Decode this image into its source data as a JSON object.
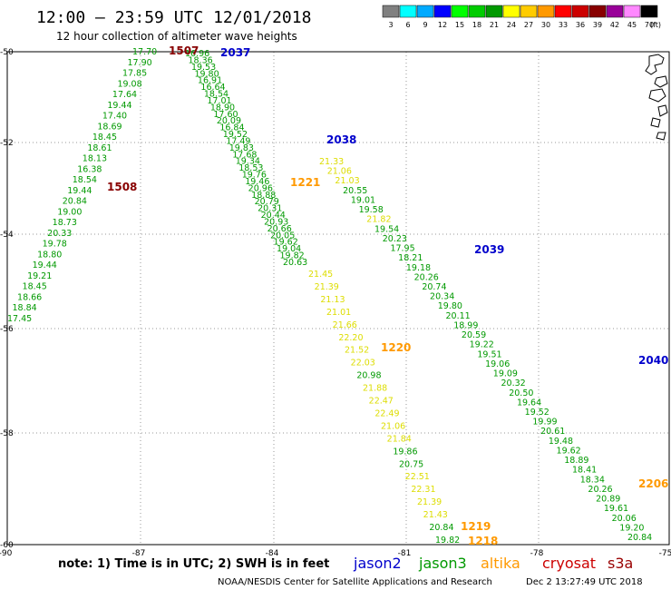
{
  "title": "12:00 – 23:59 UTC 12/01/2018",
  "subtitle": "12 hour collection of altimeter wave heights",
  "colorbar": {
    "unit": "(ft)",
    "labels": [
      "3",
      "6",
      "9",
      "12",
      "15",
      "18",
      "21",
      "24",
      "27",
      "30",
      "33",
      "36",
      "39",
      "42",
      "45",
      "70"
    ],
    "colors": [
      "#808080",
      "#00ffff",
      "#00aaff",
      "#0000ff",
      "#00ff00",
      "#00cc00",
      "#009900",
      "#ffff00",
      "#ffcc00",
      "#ff9900",
      "#ff0000",
      "#cc0000",
      "#880000",
      "#990099",
      "#ff88ff",
      "#000000"
    ]
  },
  "axes": {
    "lon_labels": [
      "-90",
      "-87",
      "-84",
      "-81",
      "-78",
      "-75"
    ],
    "lat_labels": [
      "-50",
      "-52",
      "-54",
      "-56",
      "-58",
      "-60"
    ]
  },
  "note": "note: 1) Time is in UTC; 2) SWH is in feet",
  "legend": [
    {
      "name": "jason2",
      "color": "#0000cc"
    },
    {
      "name": "jason3",
      "color": "#009900"
    },
    {
      "name": "altika",
      "color": "#ff9900"
    },
    {
      "name": "cryosat",
      "color": "#cc0000"
    },
    {
      "name": "s3a",
      "color": "#990000"
    }
  ],
  "credit": "NOAA/NESDIS Center for Satellite Applications and Research",
  "timestamp": "Dec  2 13:27:49 UTC 2018",
  "time_labels": [
    {
      "text": "1507",
      "color": "#880000"
    },
    {
      "text": "2037",
      "color": "#0000cc"
    },
    {
      "text": "2038",
      "color": "#0000cc"
    },
    {
      "text": "1508",
      "color": "#880000"
    },
    {
      "text": "1221",
      "color": "#ff9900"
    },
    {
      "text": "2039",
      "color": "#0000cc"
    },
    {
      "text": "1220",
      "color": "#ff9900"
    },
    {
      "text": "2040",
      "color": "#0000cc"
    },
    {
      "text": "1219",
      "color": "#ff9900"
    },
    {
      "text": "1218",
      "color": "#ff9900"
    },
    {
      "text": "2206",
      "color": "#ff9900"
    }
  ],
  "tracks": [
    {
      "name": "left ascending (s3a)",
      "values": [
        "17.70",
        "17.90",
        "17.85",
        "19.08",
        "17.64",
        "19.44",
        "17.40",
        "18.69",
        "18.45",
        "18.61",
        "18.13",
        "16.38",
        "18.54",
        "19.44",
        "20.84",
        "19.00",
        "18.73",
        "20.33",
        "19.78",
        "18.80",
        "19.44",
        "19.21",
        "18.45",
        "18.66",
        "18.84",
        "17.45"
      ]
    },
    {
      "name": "cluster near 1507",
      "values": [
        "16.96",
        "18.36",
        "19.53",
        "19.80",
        "16.91",
        "16.64",
        "18.54",
        "17.01",
        "18.90",
        "17.60",
        "20.09",
        "16.84",
        "19.52",
        "17.49",
        "19.83",
        "17.68",
        "19.34",
        "18.53",
        "19.76",
        "19.46",
        "20.96",
        "18.88",
        "20.79",
        "20.31",
        "20.44",
        "20.93",
        "20.66",
        "20.05",
        "19.62",
        "19.04",
        "19.82",
        "20.63"
      ]
    },
    {
      "name": "jason3 long track",
      "values": [
        "21.33",
        "21.06",
        "21.03",
        "20.55",
        "19.01",
        "19.58",
        "21.82",
        "19.54",
        "20.23",
        "17.95",
        "18.21",
        "19.18",
        "20.26",
        "20.74",
        "20.34",
        "19.80",
        "20.11",
        "18.99",
        "20.59",
        "19.22",
        "19.51",
        "19.06",
        "19.09",
        "20.32",
        "20.50",
        "19.64",
        "19.52",
        "19.99",
        "20.61",
        "19.48",
        "19.62",
        "18.89",
        "18.41",
        "18.34",
        "20.26",
        "20.89",
        "19.61",
        "20.06",
        "19.20",
        "20.84"
      ]
    },
    {
      "name": "altika descending",
      "values": [
        "21.45",
        "21.39",
        "21.13",
        "21.01",
        "21.66",
        "22.20",
        "21.52",
        "22.03",
        "20.98",
        "21.88",
        "22.47",
        "22.49",
        "21.06",
        "21.84",
        "19.86",
        "20.75",
        "22.51",
        "22.31",
        "21.39",
        "21.43",
        "20.84",
        "19.82"
      ]
    }
  ]
}
